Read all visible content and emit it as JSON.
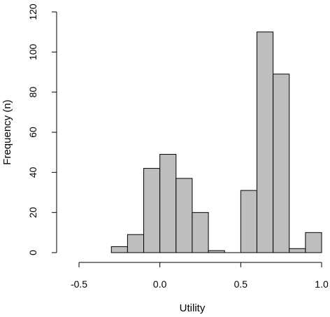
{
  "chart_data": {
    "type": "bar",
    "subtype": "histogram",
    "title": "",
    "xlabel": "Utility",
    "ylabel": "Frequency (n)",
    "xlim": [
      -0.5,
      1.0
    ],
    "ylim": [
      0,
      120
    ],
    "x_ticks": [
      -0.5,
      0.0,
      0.5,
      1.0
    ],
    "x_tick_labels": [
      "-0.5",
      "0.0",
      "0.5",
      "1.0"
    ],
    "y_ticks": [
      0,
      20,
      40,
      60,
      80,
      100,
      120
    ],
    "y_tick_labels": [
      "0",
      "20",
      "40",
      "60",
      "80",
      "100",
      "120"
    ],
    "bin_width": 0.1,
    "bins": [
      {
        "start": -0.3,
        "end": -0.2,
        "count": 3
      },
      {
        "start": -0.2,
        "end": -0.1,
        "count": 9
      },
      {
        "start": -0.1,
        "end": 0.0,
        "count": 42
      },
      {
        "start": 0.0,
        "end": 0.1,
        "count": 49
      },
      {
        "start": 0.1,
        "end": 0.2,
        "count": 37
      },
      {
        "start": 0.2,
        "end": 0.3,
        "count": 20
      },
      {
        "start": 0.3,
        "end": 0.4,
        "count": 1
      },
      {
        "start": 0.4,
        "end": 0.5,
        "count": 0
      },
      {
        "start": 0.5,
        "end": 0.6,
        "count": 31
      },
      {
        "start": 0.6,
        "end": 0.7,
        "count": 110
      },
      {
        "start": 0.7,
        "end": 0.8,
        "count": 89
      },
      {
        "start": 0.8,
        "end": 0.9,
        "count": 2
      },
      {
        "start": 0.9,
        "end": 1.0,
        "count": 10
      }
    ],
    "bar_fill": "#bebebe",
    "bar_stroke": "#000000",
    "grid": false,
    "legend": "none"
  }
}
